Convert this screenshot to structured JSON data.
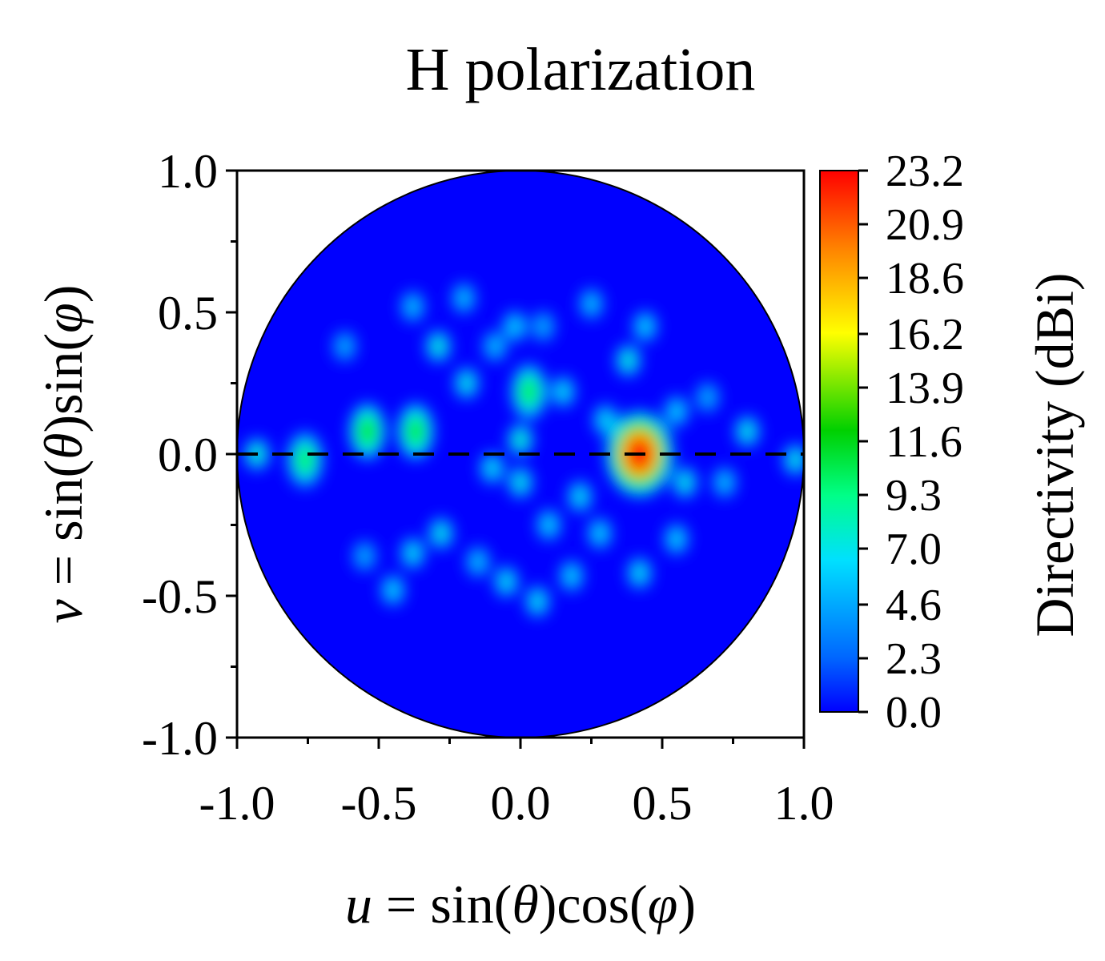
{
  "chart_data": {
    "type": "heatmap",
    "title": "H polarization",
    "xlabel": "u = sin(θ)cos(φ)",
    "xlabel_parts": [
      "u",
      " = sin(",
      "θ",
      ")cos(",
      "φ",
      ")"
    ],
    "ylabel": "v = sin(θ)sin(φ)",
    "ylabel_parts": [
      "v",
      " = sin(",
      "θ",
      ")sin(",
      "φ",
      ")"
    ],
    "xlim": [
      -1.0,
      1.0
    ],
    "ylim": [
      -1.0,
      1.0
    ],
    "x_ticks": [
      "-1.0",
      "-0.5",
      "0.0",
      "0.5",
      "1.0"
    ],
    "y_ticks": [
      "1.0",
      "0.5",
      "0.0",
      "-0.5",
      "-1.0"
    ],
    "colorbar": {
      "label": "Directivity (dBi)",
      "min": 0.0,
      "max": 23.2,
      "ticks": [
        "23.2",
        "20.9",
        "18.6",
        "16.2",
        "13.9",
        "11.6",
        "9.3",
        "7.0",
        "4.6",
        "2.3",
        "0.0"
      ],
      "colormap": [
        "#0000ff",
        "#0066ff",
        "#00ddff",
        "#00ff66",
        "#00dd00",
        "#ffff00",
        "#ff8800",
        "#ff0000"
      ]
    },
    "visible_region": "unit circle u^2 + v^2 <= 1",
    "reference_line": {
      "v": 0.0,
      "style": "dashed"
    },
    "peak": {
      "u": 0.42,
      "v": 0.0,
      "value": 23.2
    },
    "hotspots": [
      {
        "u": 0.42,
        "v": 0.0,
        "value": 23.2
      },
      {
        "u": -0.54,
        "v": 0.08,
        "value": 12.5
      },
      {
        "u": -0.37,
        "v": 0.08,
        "value": 12.0
      },
      {
        "u": 0.03,
        "v": 0.22,
        "value": 11.0
      },
      {
        "u": -0.76,
        "v": -0.02,
        "value": 10.5
      },
      {
        "u": -0.93,
        "v": 0.0,
        "value": 8.5
      },
      {
        "u": 0.97,
        "v": -0.02,
        "value": 7.5
      },
      {
        "u": 0.8,
        "v": 0.08,
        "value": 7.5
      },
      {
        "u": -0.29,
        "v": 0.38,
        "value": 8.0
      },
      {
        "u": -0.19,
        "v": 0.25,
        "value": 7.5
      },
      {
        "u": 0.15,
        "v": 0.22,
        "value": 7.0
      },
      {
        "u": -0.1,
        "v": -0.05,
        "value": 7.0
      },
      {
        "u": 0.0,
        "v": -0.1,
        "value": 7.5
      },
      {
        "u": 0.21,
        "v": -0.15,
        "value": 7.0
      },
      {
        "u": -0.28,
        "v": -0.28,
        "value": 7.5
      },
      {
        "u": -0.38,
        "v": -0.35,
        "value": 7.0
      },
      {
        "u": -0.45,
        "v": -0.48,
        "value": 6.5
      },
      {
        "u": -0.05,
        "v": -0.45,
        "value": 7.0
      },
      {
        "u": 0.06,
        "v": -0.52,
        "value": 7.0
      },
      {
        "u": 0.18,
        "v": -0.43,
        "value": 6.5
      },
      {
        "u": 0.42,
        "v": -0.42,
        "value": 7.0
      },
      {
        "u": 0.55,
        "v": -0.3,
        "value": 6.5
      },
      {
        "u": 0.58,
        "v": -0.1,
        "value": 7.5
      },
      {
        "u": 0.72,
        "v": -0.1,
        "value": 6.0
      },
      {
        "u": 0.55,
        "v": 0.15,
        "value": 6.5
      },
      {
        "u": 0.38,
        "v": 0.33,
        "value": 8.0
      },
      {
        "u": 0.44,
        "v": 0.45,
        "value": 6.5
      },
      {
        "u": 0.25,
        "v": 0.53,
        "value": 6.0
      },
      {
        "u": -0.02,
        "v": 0.45,
        "value": 6.5
      },
      {
        "u": -0.38,
        "v": 0.52,
        "value": 6.0
      },
      {
        "u": -0.2,
        "v": 0.55,
        "value": 6.0
      },
      {
        "u": -0.09,
        "v": 0.38,
        "value": 6.0
      },
      {
        "u": 0.08,
        "v": 0.45,
        "value": 5.5
      },
      {
        "u": 0.3,
        "v": 0.12,
        "value": 7.0
      },
      {
        "u": 0.28,
        "v": -0.28,
        "value": 6.5
      },
      {
        "u": -0.55,
        "v": -0.36,
        "value": 5.5
      },
      {
        "u": -0.15,
        "v": -0.38,
        "value": 6.0
      },
      {
        "u": 0.66,
        "v": 0.2,
        "value": 5.5
      },
      {
        "u": -0.62,
        "v": 0.38,
        "value": 5.5
      },
      {
        "u": 0.0,
        "v": 0.05,
        "value": 8.5
      },
      {
        "u": 0.1,
        "v": -0.25,
        "value": 6.5
      }
    ]
  }
}
